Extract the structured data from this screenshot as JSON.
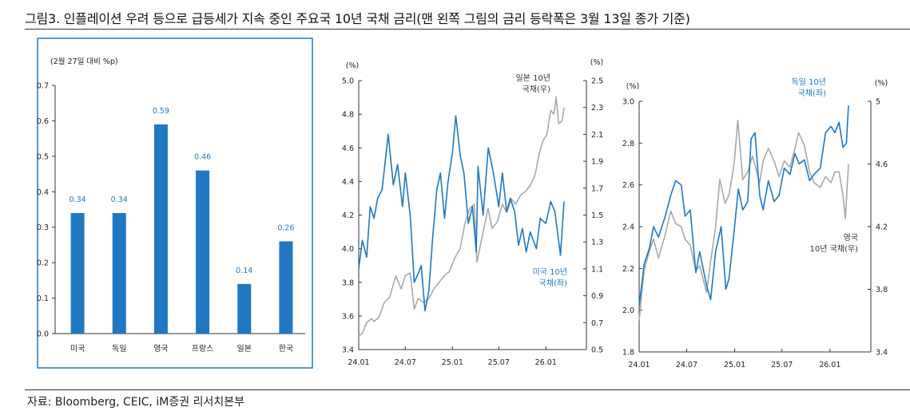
{
  "header": {
    "title": "그림3.   인플레이션 우려 등으로 급등세가 지속 중인 주요국 10년 국채 금리(맨 왼쪽 그림의 금리 등락폭은 3월 13일 종가 기준)"
  },
  "footer": {
    "source": "자료: Bloomberg, CEIC, iM증권 리서치본부"
  },
  "colors": {
    "blue": "#1f78c1",
    "gray": "#a9a9a9",
    "panel_border": "#1f78c1"
  },
  "chart_data": [
    {
      "type": "bar",
      "title": "",
      "unit_label": "(2월 27일 대비 %p)",
      "categories": [
        "미국",
        "독일",
        "영국",
        "프랑스",
        "일본",
        "한국"
      ],
      "values": [
        0.34,
        0.34,
        0.59,
        0.46,
        0.14,
        0.26
      ],
      "value_labels": [
        "0.34",
        "0.34",
        "0.59",
        "0.46",
        "0.14",
        "0.26"
      ],
      "ylim": [
        0,
        0.7
      ],
      "yticks": [
        "0.0",
        "0.1",
        "0.2",
        "0.3",
        "0.4",
        "0.5",
        "0.6",
        "0.7"
      ],
      "grid": false,
      "bar_color": "#1f78c1"
    },
    {
      "type": "line",
      "left_unit": "(%)",
      "right_unit": "(%)",
      "xticks": [
        "24.01",
        "24.07",
        "25.01",
        "25.07",
        "26.01"
      ],
      "x_range": [
        "2024-01-01",
        "2026-03-13"
      ],
      "left_ylim": [
        3.4,
        5.0
      ],
      "left_yticks": [
        "3.4",
        "3.6",
        "3.8",
        "4.0",
        "4.2",
        "4.4",
        "4.6",
        "4.8",
        "5.0"
      ],
      "right_ylim": [
        0.5,
        2.5
      ],
      "right_yticks": [
        "0.5",
        "0.7",
        "0.9",
        "1.1",
        "1.3",
        "1.5",
        "1.7",
        "1.9",
        "2.1",
        "2.3",
        "2.5"
      ],
      "annotations": [
        {
          "lines": [
            "일본 10년",
            "국채(우)"
          ],
          "color": "#333333"
        },
        {
          "lines": [
            "미국 10년",
            "국채(좌)"
          ],
          "color": "#1f78c1"
        }
      ],
      "series": [
        {
          "axis": "left",
          "color": "#1f78c1",
          "points": [
            [
              "2024-01-01",
              3.88
            ],
            [
              "2024-01-15",
              4.05
            ],
            [
              "2024-02-01",
              3.95
            ],
            [
              "2024-02-15",
              4.25
            ],
            [
              "2024-03-01",
              4.18
            ],
            [
              "2024-03-15",
              4.3
            ],
            [
              "2024-04-01",
              4.35
            ],
            [
              "2024-04-25",
              4.68
            ],
            [
              "2024-05-15",
              4.38
            ],
            [
              "2024-06-01",
              4.5
            ],
            [
              "2024-06-20",
              4.25
            ],
            [
              "2024-07-01",
              4.45
            ],
            [
              "2024-07-20",
              4.2
            ],
            [
              "2024-08-05",
              3.8
            ],
            [
              "2024-08-20",
              3.85
            ],
            [
              "2024-09-01",
              3.9
            ],
            [
              "2024-09-16",
              3.63
            ],
            [
              "2024-10-01",
              3.75
            ],
            [
              "2024-10-15",
              4.05
            ],
            [
              "2024-11-01",
              4.35
            ],
            [
              "2024-11-15",
              4.45
            ],
            [
              "2024-12-01",
              4.18
            ],
            [
              "2024-12-15",
              4.4
            ],
            [
              "2025-01-01",
              4.57
            ],
            [
              "2025-01-14",
              4.79
            ],
            [
              "2025-02-01",
              4.55
            ],
            [
              "2025-02-15",
              4.45
            ],
            [
              "2025-03-04",
              4.15
            ],
            [
              "2025-03-20",
              4.25
            ],
            [
              "2025-04-04",
              3.98
            ],
            [
              "2025-04-11",
              4.49
            ],
            [
              "2025-05-01",
              4.2
            ],
            [
              "2025-05-21",
              4.6
            ],
            [
              "2025-06-10",
              4.45
            ],
            [
              "2025-07-01",
              4.25
            ],
            [
              "2025-07-15",
              4.45
            ],
            [
              "2025-08-01",
              4.22
            ],
            [
              "2025-08-15",
              4.3
            ],
            [
              "2025-09-01",
              4.22
            ],
            [
              "2025-09-16",
              4.02
            ],
            [
              "2025-10-01",
              4.12
            ],
            [
              "2025-10-16",
              3.98
            ],
            [
              "2025-11-01",
              4.1
            ],
            [
              "2025-11-25",
              4.0
            ],
            [
              "2025-12-10",
              4.18
            ],
            [
              "2026-01-01",
              4.15
            ],
            [
              "2026-01-20",
              4.28
            ],
            [
              "2026-02-05",
              4.22
            ],
            [
              "2026-02-27",
              3.96
            ],
            [
              "2026-03-13",
              4.28
            ]
          ]
        },
        {
          "axis": "right",
          "color": "#a9a9a9",
          "points": [
            [
              "2024-01-01",
              0.6
            ],
            [
              "2024-01-15",
              0.62
            ],
            [
              "2024-02-01",
              0.7
            ],
            [
              "2024-02-20",
              0.73
            ],
            [
              "2024-03-01",
              0.71
            ],
            [
              "2024-03-20",
              0.74
            ],
            [
              "2024-04-10",
              0.85
            ],
            [
              "2024-05-01",
              0.89
            ],
            [
              "2024-05-25",
              1.05
            ],
            [
              "2024-06-15",
              0.95
            ],
            [
              "2024-07-01",
              1.05
            ],
            [
              "2024-07-20",
              1.07
            ],
            [
              "2024-08-05",
              0.8
            ],
            [
              "2024-08-20",
              0.88
            ],
            [
              "2024-09-10",
              0.85
            ],
            [
              "2024-10-01",
              0.88
            ],
            [
              "2024-10-20",
              0.95
            ],
            [
              "2024-11-10",
              1.0
            ],
            [
              "2024-12-01",
              1.05
            ],
            [
              "2024-12-20",
              1.08
            ],
            [
              "2025-01-10",
              1.18
            ],
            [
              "2025-01-31",
              1.25
            ],
            [
              "2025-02-20",
              1.45
            ],
            [
              "2025-03-10",
              1.55
            ],
            [
              "2025-03-27",
              1.58
            ],
            [
              "2025-04-07",
              1.15
            ],
            [
              "2025-04-25",
              1.32
            ],
            [
              "2025-05-20",
              1.55
            ],
            [
              "2025-06-05",
              1.4
            ],
            [
              "2025-06-25",
              1.45
            ],
            [
              "2025-07-15",
              1.58
            ],
            [
              "2025-08-01",
              1.52
            ],
            [
              "2025-08-20",
              1.62
            ],
            [
              "2025-09-05",
              1.58
            ],
            [
              "2025-09-25",
              1.65
            ],
            [
              "2025-10-15",
              1.68
            ],
            [
              "2025-11-01",
              1.72
            ],
            [
              "2025-11-20",
              1.8
            ],
            [
              "2025-12-05",
              1.95
            ],
            [
              "2025-12-20",
              2.05
            ],
            [
              "2026-01-05",
              2.1
            ],
            [
              "2026-01-20",
              2.28
            ],
            [
              "2026-02-01",
              2.25
            ],
            [
              "2026-02-10",
              2.38
            ],
            [
              "2026-02-20",
              2.18
            ],
            [
              "2026-03-05",
              2.2
            ],
            [
              "2026-03-13",
              2.3
            ]
          ]
        }
      ]
    },
    {
      "type": "line",
      "left_unit": "(%)",
      "right_unit": "(%)",
      "xticks": [
        "24.01",
        "24.07",
        "25.01",
        "25.07",
        "26.01"
      ],
      "x_range": [
        "2024-01-01",
        "2026-03-13"
      ],
      "left_ylim": [
        1.8,
        3.0
      ],
      "left_yticks": [
        "1.8",
        "2.0",
        "2.2",
        "2.4",
        "2.6",
        "2.8",
        "3.0"
      ],
      "right_ylim": [
        3.4,
        5.0
      ],
      "right_yticks": [
        "3.4",
        "3.8",
        "4.2",
        "4.6",
        "5"
      ],
      "annotations": [
        {
          "lines": [
            "독일 10년",
            "국채(좌)"
          ],
          "color": "#1f78c1"
        },
        {
          "lines": [
            "영국",
            "10년 국채(우)"
          ],
          "color": "#333333"
        }
      ],
      "series": [
        {
          "axis": "left",
          "color": "#1f78c1",
          "points": [
            [
              "2024-01-01",
              2.02
            ],
            [
              "2024-01-20",
              2.22
            ],
            [
              "2024-02-10",
              2.3
            ],
            [
              "2024-02-25",
              2.4
            ],
            [
              "2024-03-15",
              2.35
            ],
            [
              "2024-04-10",
              2.45
            ],
            [
              "2024-05-01",
              2.55
            ],
            [
              "2024-05-20",
              2.62
            ],
            [
              "2024-06-10",
              2.6
            ],
            [
              "2024-06-25",
              2.45
            ],
            [
              "2024-07-15",
              2.48
            ],
            [
              "2024-08-05",
              2.18
            ],
            [
              "2024-08-20",
              2.28
            ],
            [
              "2024-09-15",
              2.12
            ],
            [
              "2024-10-01",
              2.05
            ],
            [
              "2024-10-20",
              2.28
            ],
            [
              "2024-11-10",
              2.4
            ],
            [
              "2024-11-28",
              2.1
            ],
            [
              "2024-12-10",
              2.15
            ],
            [
              "2024-12-30",
              2.38
            ],
            [
              "2025-01-15",
              2.58
            ],
            [
              "2025-02-01",
              2.48
            ],
            [
              "2025-02-20",
              2.52
            ],
            [
              "2025-03-05",
              2.82
            ],
            [
              "2025-03-20",
              2.85
            ],
            [
              "2025-04-07",
              2.55
            ],
            [
              "2025-04-20",
              2.48
            ],
            [
              "2025-05-10",
              2.62
            ],
            [
              "2025-06-01",
              2.52
            ],
            [
              "2025-06-20",
              2.55
            ],
            [
              "2025-07-10",
              2.68
            ],
            [
              "2025-08-01",
              2.65
            ],
            [
              "2025-08-20",
              2.75
            ],
            [
              "2025-09-05",
              2.7
            ],
            [
              "2025-09-25",
              2.72
            ],
            [
              "2025-10-15",
              2.62
            ],
            [
              "2025-11-01",
              2.65
            ],
            [
              "2025-11-25",
              2.68
            ],
            [
              "2025-12-15",
              2.85
            ],
            [
              "2026-01-05",
              2.88
            ],
            [
              "2026-01-20",
              2.85
            ],
            [
              "2026-02-05",
              2.9
            ],
            [
              "2026-02-20",
              2.78
            ],
            [
              "2026-03-05",
              2.8
            ],
            [
              "2026-03-13",
              2.98
            ]
          ]
        },
        {
          "axis": "right",
          "color": "#a9a9a9",
          "points": [
            [
              "2024-01-01",
              3.6
            ],
            [
              "2024-01-20",
              3.92
            ],
            [
              "2024-02-10",
              4.05
            ],
            [
              "2024-02-25",
              4.12
            ],
            [
              "2024-03-15",
              4.0
            ],
            [
              "2024-04-10",
              4.15
            ],
            [
              "2024-05-01",
              4.3
            ],
            [
              "2024-05-20",
              4.22
            ],
            [
              "2024-06-10",
              4.2
            ],
            [
              "2024-06-25",
              4.12
            ],
            [
              "2024-07-15",
              4.08
            ],
            [
              "2024-08-05",
              3.92
            ],
            [
              "2024-08-20",
              3.95
            ],
            [
              "2024-09-15",
              3.78
            ],
            [
              "2024-10-01",
              3.98
            ],
            [
              "2024-10-20",
              4.2
            ],
            [
              "2024-11-05",
              4.5
            ],
            [
              "2024-11-25",
              4.35
            ],
            [
              "2024-12-10",
              4.4
            ],
            [
              "2024-12-30",
              4.6
            ],
            [
              "2025-01-13",
              4.88
            ],
            [
              "2025-02-01",
              4.5
            ],
            [
              "2025-02-20",
              4.55
            ],
            [
              "2025-03-10",
              4.65
            ],
            [
              "2025-04-07",
              4.48
            ],
            [
              "2025-04-20",
              4.62
            ],
            [
              "2025-05-10",
              4.7
            ],
            [
              "2025-06-01",
              4.62
            ],
            [
              "2025-06-20",
              4.52
            ],
            [
              "2025-07-10",
              4.62
            ],
            [
              "2025-08-01",
              4.58
            ],
            [
              "2025-08-20",
              4.7
            ],
            [
              "2025-09-03",
              4.8
            ],
            [
              "2025-09-25",
              4.72
            ],
            [
              "2025-10-15",
              4.55
            ],
            [
              "2025-11-01",
              4.48
            ],
            [
              "2025-11-25",
              4.45
            ],
            [
              "2025-12-15",
              4.52
            ],
            [
              "2026-01-05",
              4.48
            ],
            [
              "2026-01-20",
              4.55
            ],
            [
              "2026-02-05",
              4.55
            ],
            [
              "2026-02-20",
              4.4
            ],
            [
              "2026-03-01",
              4.25
            ],
            [
              "2026-03-13",
              4.6
            ]
          ]
        }
      ]
    }
  ]
}
